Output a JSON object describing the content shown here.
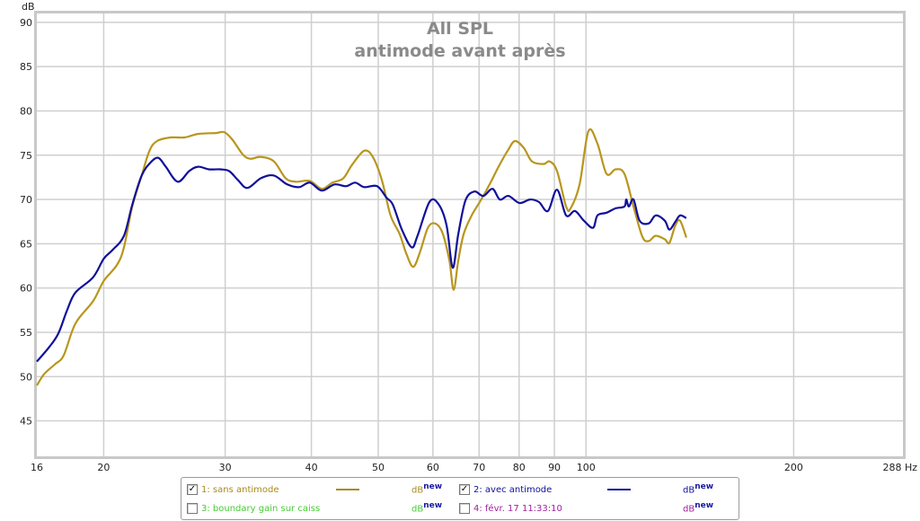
{
  "chart_data": {
    "type": "line",
    "title": "All SPL",
    "subtitle": "antimode avant après",
    "xlabel": "Hz",
    "ylabel": "dB",
    "xscale": "log",
    "xlim": [
      16,
      288
    ],
    "ylim": [
      41,
      91
    ],
    "grid": true,
    "x_ticks": [
      16,
      20,
      30,
      40,
      50,
      60,
      70,
      80,
      90,
      100,
      200,
      288
    ],
    "x_tick_labels": [
      "16",
      "20",
      "30",
      "40",
      "50",
      "60",
      "70",
      "80",
      "90",
      "100",
      "200",
      "288 Hz"
    ],
    "y_ticks": [
      45,
      50,
      55,
      60,
      65,
      70,
      75,
      80,
      85,
      90
    ],
    "y_tick_labels": [
      "45",
      "50",
      "55",
      "60",
      "65",
      "70",
      "75",
      "80",
      "85",
      "90"
    ],
    "series": [
      {
        "name": "1: sans antimode",
        "color": "#b8961e",
        "x": [
          16,
          16.4,
          17.0,
          17.5,
          18.2,
          19.3,
          20.0,
          20.9,
          21.4,
          22.0,
          22.7,
          23.3,
          23.9,
          25.0,
          26.2,
          27.4,
          29.1,
          29.9,
          30.7,
          31.8,
          32.6,
          33.8,
          35.3,
          36.7,
          38.0,
          39.8,
          41.4,
          42.9,
          44.5,
          45.8,
          47.7,
          49.1,
          50.6,
          52.1,
          53.7,
          54.9,
          56.2,
          57.5,
          59.0,
          60.4,
          61.9,
          63.4,
          64.3,
          65.3,
          66.5,
          68.3,
          70.4,
          72.5,
          74.7,
          77.0,
          78.9,
          81.3,
          83.5,
          86.8,
          88.6,
          90.8,
          93.6,
          95.0,
          97.9,
          100.8,
          103.9,
          107.1,
          110.4,
          113.7,
          117.2,
          120.7,
          123.3,
          126.2,
          130.1,
          132.1,
          134.8,
          136.9,
          139.8
        ],
        "y": [
          49.0,
          50.3,
          51.4,
          52.4,
          56.0,
          58.5,
          60.8,
          62.6,
          64.6,
          69.2,
          72.7,
          75.5,
          76.6,
          77.0,
          77.0,
          77.4,
          77.5,
          77.6,
          76.8,
          75.1,
          74.6,
          74.8,
          74.3,
          72.4,
          72.0,
          72.1,
          71.2,
          71.9,
          72.4,
          73.9,
          75.5,
          74.8,
          72.2,
          68.2,
          66.1,
          63.9,
          62.4,
          64.1,
          66.8,
          67.3,
          66.3,
          63.1,
          59.8,
          63.1,
          66.1,
          68.2,
          69.9,
          71.7,
          73.7,
          75.5,
          76.6,
          75.8,
          74.3,
          74.0,
          74.3,
          73.2,
          69.2,
          69.0,
          71.7,
          77.7,
          76.3,
          72.9,
          73.4,
          72.9,
          69.2,
          65.8,
          65.3,
          65.9,
          65.5,
          65.1,
          67.1,
          67.6,
          65.7
        ]
      },
      {
        "name": "2: avec antimode",
        "color": "#10109a",
        "x": [
          16,
          16.7,
          17.2,
          17.7,
          18.2,
          19.3,
          20.0,
          20.6,
          21.4,
          22.0,
          22.7,
          23.4,
          24.0,
          24.6,
          25.6,
          26.6,
          27.4,
          28.4,
          29.5,
          30.4,
          31.3,
          32.3,
          33.8,
          35.3,
          36.9,
          38.4,
          39.8,
          41.4,
          43.2,
          44.9,
          46.3,
          47.7,
          49.8,
          51.4,
          52.5,
          54.1,
          55.9,
          57.0,
          59.3,
          61.1,
          62.8,
          64.1,
          65.3,
          66.9,
          68.9,
          71.0,
          73.2,
          75.0,
          77.2,
          80.1,
          83.0,
          85.5,
          88.1,
          90.8,
          93.6,
          96.4,
          99.3,
          102.4,
          103.9,
          107.1,
          110.4,
          113.7,
          114.4,
          115.4,
          117.2,
          119.6,
          123.3,
          126.2,
          130.1,
          132.1,
          134.8,
          136.9,
          139.8
        ],
        "y": [
          51.7,
          53.4,
          54.9,
          57.5,
          59.5,
          61.2,
          63.3,
          64.3,
          65.9,
          69.4,
          72.7,
          74.2,
          74.7,
          73.7,
          72.0,
          73.2,
          73.7,
          73.4,
          73.4,
          73.2,
          72.2,
          71.3,
          72.4,
          72.7,
          71.7,
          71.4,
          71.9,
          71.0,
          71.7,
          71.5,
          71.9,
          71.4,
          71.5,
          70.2,
          69.4,
          66.6,
          64.6,
          65.9,
          69.7,
          69.5,
          67.1,
          62.3,
          66.1,
          69.9,
          70.9,
          70.4,
          71.2,
          70.0,
          70.4,
          69.6,
          70.0,
          69.7,
          68.7,
          71.1,
          68.2,
          68.7,
          67.6,
          66.8,
          68.2,
          68.5,
          69.0,
          69.2,
          70.0,
          69.2,
          70.0,
          67.6,
          67.3,
          68.2,
          67.6,
          66.6,
          67.5,
          68.2,
          67.9
        ]
      }
    ]
  },
  "legend": {
    "items": [
      {
        "label": "1: sans antimode",
        "checked": true,
        "color": "#a88a1c",
        "unit": "dB",
        "unit_sup": "new",
        "unit_color": "#a88a1c"
      },
      {
        "label": "2: avec antimode",
        "checked": true,
        "color": "#10109a",
        "unit": "dB",
        "unit_sup": "new",
        "unit_color": "#10109a"
      },
      {
        "label": "3: boundary gain sur caiss",
        "checked": false,
        "color": "#44cc33",
        "unit": "dB",
        "unit_sup": "new",
        "unit_color": "#44cc33"
      },
      {
        "label": "4: févr. 17 11:33:10",
        "checked": false,
        "color": "#a020a0",
        "unit": "dB",
        "unit_sup": "new",
        "unit_color": "#a020a0"
      }
    ],
    "check_mark": "✓"
  }
}
